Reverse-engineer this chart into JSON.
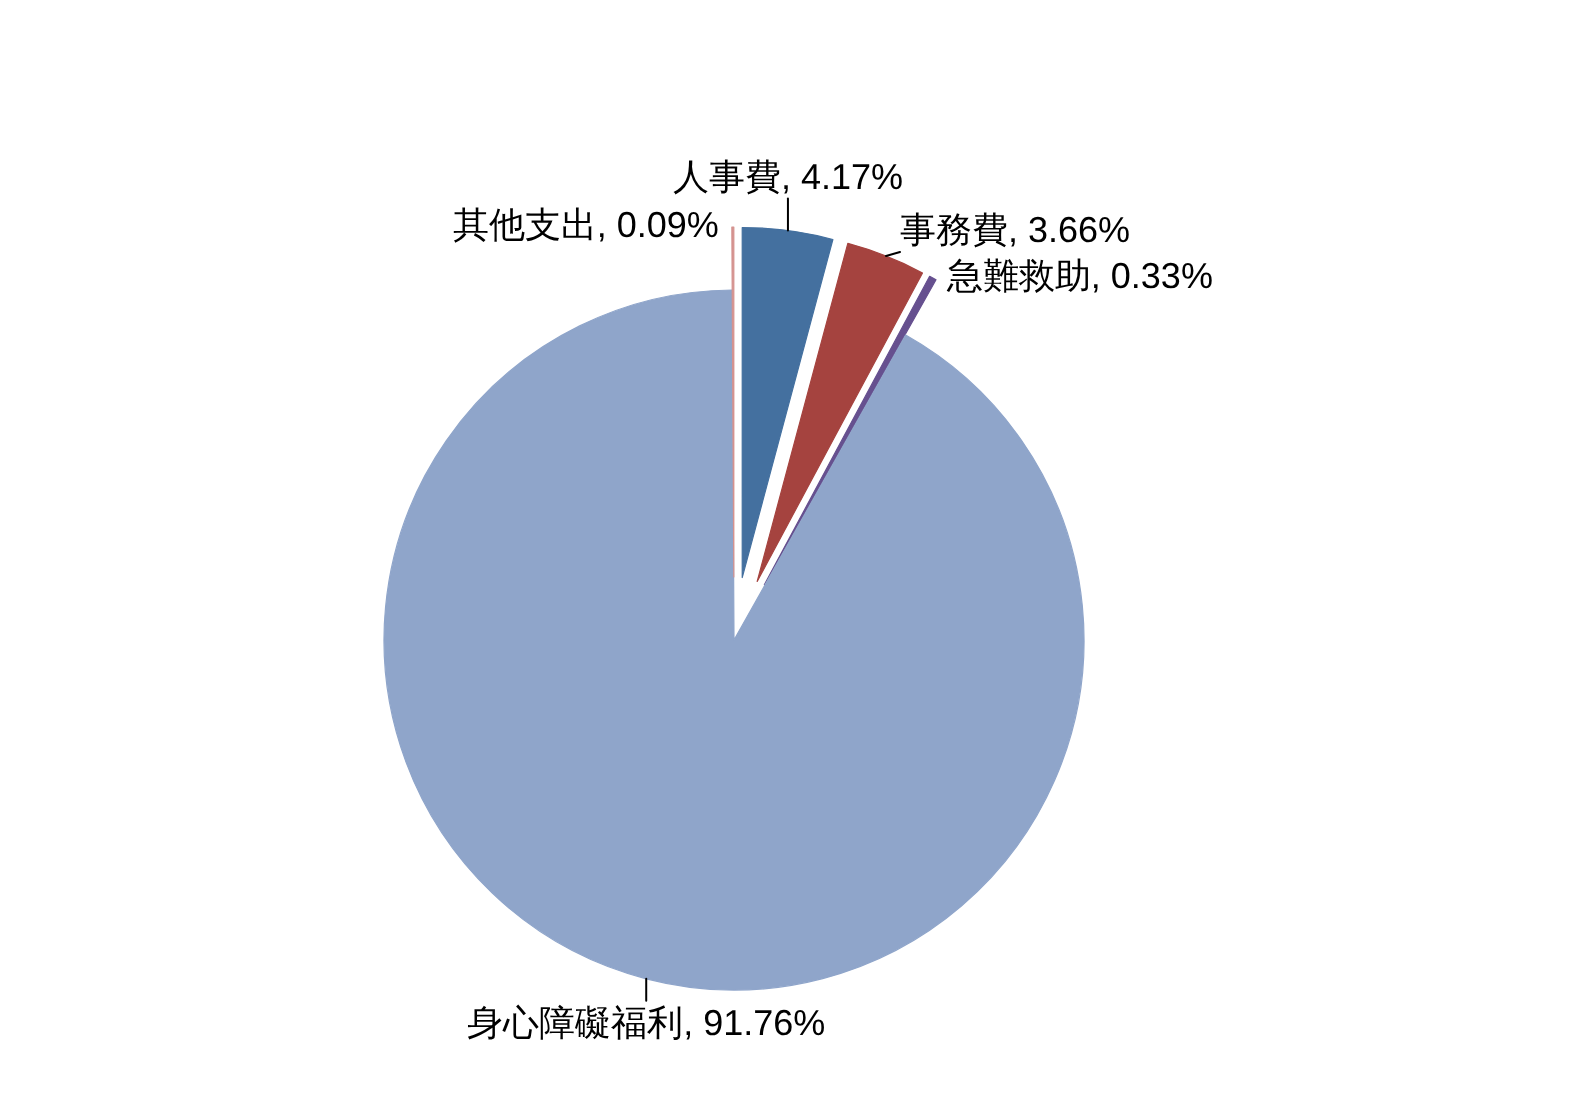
{
  "chart_data": {
    "type": "pie",
    "categories": [
      "人事費",
      "事務費",
      "急難救助",
      "身心障礙福利",
      "其他支出"
    ],
    "values": [
      4.17,
      3.66,
      0.33,
      91.76,
      0.09
    ],
    "colors": [
      "#44709f",
      "#a5433f",
      "#66508f",
      "#8fa5ca",
      "#d4928f"
    ],
    "value_labels": [
      "4.17%",
      "3.66%",
      "0.33%",
      "91.76%",
      "0.09%"
    ]
  }
}
